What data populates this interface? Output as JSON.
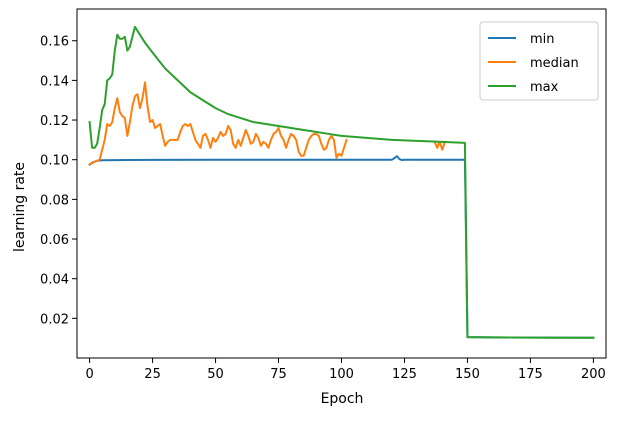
{
  "chart_data": {
    "type": "line",
    "title": "",
    "xlabel": "Epoch",
    "ylabel": "learning rate",
    "xlim": [
      -5,
      205
    ],
    "ylim": [
      0,
      0.176
    ],
    "x_ticks": [
      0,
      25,
      50,
      75,
      100,
      125,
      150,
      175,
      200
    ],
    "y_ticks": [
      0.02,
      0.04,
      0.06,
      0.08,
      0.1,
      0.12,
      0.14,
      0.16
    ],
    "x_tick_labels": [
      "0",
      "25",
      "50",
      "75",
      "100",
      "125",
      "150",
      "175",
      "200"
    ],
    "y_tick_labels": [
      "0.02",
      "0.04",
      "0.06",
      "0.08",
      "0.10",
      "0.12",
      "0.14",
      "0.16"
    ],
    "grid": false,
    "legend_position": "top-right",
    "series": [
      {
        "name": "min",
        "color": "#1f77b4",
        "points": [
          [
            0,
            0.0975
          ],
          [
            1,
            0.0985
          ],
          [
            2,
            0.099
          ],
          [
            3,
            0.0995
          ],
          [
            5,
            0.0997
          ],
          [
            10,
            0.0998
          ],
          [
            25,
            0.0999
          ],
          [
            50,
            0.1
          ],
          [
            75,
            0.1
          ],
          [
            100,
            0.1
          ],
          [
            120,
            0.1
          ],
          [
            121,
            0.1008
          ],
          [
            122,
            0.1018
          ],
          [
            123,
            0.1003
          ],
          [
            124,
            0.0998
          ],
          [
            125,
            0.1
          ],
          [
            149,
            0.1
          ],
          [
            150,
            0.0105
          ],
          [
            160,
            0.0104
          ],
          [
            180,
            0.0103
          ],
          [
            200,
            0.0102
          ]
        ]
      },
      {
        "name": "median",
        "color": "#ff7f0e",
        "points": [
          [
            0,
            0.0975
          ],
          [
            2,
            0.099
          ],
          [
            4,
            0.1
          ],
          [
            6,
            0.11
          ],
          [
            7,
            0.118
          ],
          [
            8,
            0.117
          ],
          [
            9,
            0.119
          ],
          [
            10,
            0.126
          ],
          [
            11,
            0.131
          ],
          [
            12,
            0.124
          ],
          [
            13,
            0.122
          ],
          [
            14,
            0.121
          ],
          [
            15,
            0.112
          ],
          [
            16,
            0.119
          ],
          [
            17,
            0.127
          ],
          [
            18,
            0.132
          ],
          [
            19,
            0.133
          ],
          [
            20,
            0.126
          ],
          [
            21,
            0.131
          ],
          [
            22,
            0.139
          ],
          [
            23,
            0.127
          ],
          [
            24,
            0.119
          ],
          [
            25,
            0.12
          ],
          [
            26,
            0.116
          ],
          [
            27,
            0.117
          ],
          [
            28,
            0.118
          ],
          [
            29,
            0.112
          ],
          [
            30,
            0.107
          ],
          [
            31,
            0.109
          ],
          [
            32,
            0.11
          ],
          [
            33,
            0.11
          ],
          [
            34,
            0.11
          ],
          [
            35,
            0.11
          ],
          [
            36,
            0.114
          ],
          [
            37,
            0.117
          ],
          [
            38,
            0.118
          ],
          [
            39,
            0.117
          ],
          [
            40,
            0.118
          ],
          [
            41,
            0.114
          ],
          [
            42,
            0.11
          ],
          [
            43,
            0.108
          ],
          [
            44,
            0.106
          ],
          [
            45,
            0.112
          ],
          [
            46,
            0.113
          ],
          [
            47,
            0.11
          ],
          [
            48,
            0.106
          ],
          [
            49,
            0.111
          ],
          [
            50,
            0.109
          ],
          [
            51,
            0.111
          ],
          [
            52,
            0.114
          ],
          [
            53,
            0.112
          ],
          [
            54,
            0.113
          ],
          [
            55,
            0.117
          ],
          [
            56,
            0.115
          ],
          [
            57,
            0.108
          ],
          [
            58,
            0.106
          ],
          [
            59,
            0.11
          ],
          [
            60,
            0.107
          ],
          [
            61,
            0.111
          ],
          [
            62,
            0.115
          ],
          [
            63,
            0.112
          ],
          [
            64,
            0.108
          ],
          [
            65,
            0.109
          ],
          [
            66,
            0.113
          ],
          [
            67,
            0.111
          ],
          [
            68,
            0.107
          ],
          [
            69,
            0.109
          ],
          [
            70,
            0.108
          ],
          [
            71,
            0.106
          ],
          [
            72,
            0.11
          ],
          [
            73,
            0.113
          ],
          [
            74,
            0.114
          ],
          [
            75,
            0.116
          ],
          [
            76,
            0.112
          ],
          [
            77,
            0.11
          ],
          [
            78,
            0.106
          ],
          [
            79,
            0.11
          ],
          [
            80,
            0.113
          ],
          [
            81,
            0.112
          ],
          [
            82,
            0.11
          ],
          [
            83,
            0.104
          ],
          [
            84,
            0.102
          ],
          [
            85,
            0.102
          ],
          [
            86,
            0.106
          ],
          [
            87,
            0.11
          ],
          [
            88,
            0.112
          ],
          [
            89,
            0.113
          ],
          [
            90,
            0.113
          ],
          [
            91,
            0.112
          ],
          [
            92,
            0.108
          ],
          [
            93,
            0.105
          ],
          [
            94,
            0.106
          ],
          [
            95,
            0.11
          ],
          [
            96,
            0.112
          ],
          [
            97,
            0.11
          ],
          [
            98,
            0.101
          ],
          [
            99,
            0.103
          ],
          [
            100,
            0.102
          ],
          [
            101,
            0.106
          ],
          [
            102,
            0.11
          ]
        ]
      },
      {
        "name": "median",
        "color": "#ff7f0e",
        "points": [
          [
            137,
            0.109
          ],
          [
            138,
            0.106
          ],
          [
            139,
            0.109
          ],
          [
            140,
            0.105
          ],
          [
            141,
            0.109
          ]
        ]
      },
      {
        "name": "max",
        "color": "#2ca02c",
        "points": [
          [
            0,
            0.119
          ],
          [
            1,
            0.106
          ],
          [
            2,
            0.106
          ],
          [
            3,
            0.108
          ],
          [
            4,
            0.116
          ],
          [
            5,
            0.125
          ],
          [
            6,
            0.128
          ],
          [
            7,
            0.14
          ],
          [
            8,
            0.141
          ],
          [
            9,
            0.143
          ],
          [
            10,
            0.155
          ],
          [
            11,
            0.163
          ],
          [
            12,
            0.161
          ],
          [
            13,
            0.161
          ],
          [
            14,
            0.162
          ],
          [
            15,
            0.155
          ],
          [
            16,
            0.157
          ],
          [
            17,
            0.162
          ],
          [
            18,
            0.167
          ],
          [
            20,
            0.163
          ],
          [
            22,
            0.159
          ],
          [
            25,
            0.154
          ],
          [
            30,
            0.146
          ],
          [
            35,
            0.14
          ],
          [
            40,
            0.134
          ],
          [
            45,
            0.13
          ],
          [
            50,
            0.126
          ],
          [
            55,
            0.123
          ],
          [
            60,
            0.121
          ],
          [
            65,
            0.119
          ],
          [
            70,
            0.118
          ],
          [
            75,
            0.117
          ],
          [
            80,
            0.116
          ],
          [
            85,
            0.115
          ],
          [
            90,
            0.114
          ],
          [
            95,
            0.113
          ],
          [
            100,
            0.112
          ],
          [
            110,
            0.111
          ],
          [
            120,
            0.11
          ],
          [
            130,
            0.1095
          ],
          [
            140,
            0.109
          ],
          [
            149,
            0.1085
          ],
          [
            150,
            0.0105
          ],
          [
            160,
            0.0104
          ],
          [
            180,
            0.0103
          ],
          [
            200,
            0.0102
          ]
        ]
      }
    ],
    "legend": [
      {
        "label": "min",
        "color": "#1f77b4"
      },
      {
        "label": "median",
        "color": "#ff7f0e"
      },
      {
        "label": "max",
        "color": "#2ca02c"
      }
    ]
  }
}
